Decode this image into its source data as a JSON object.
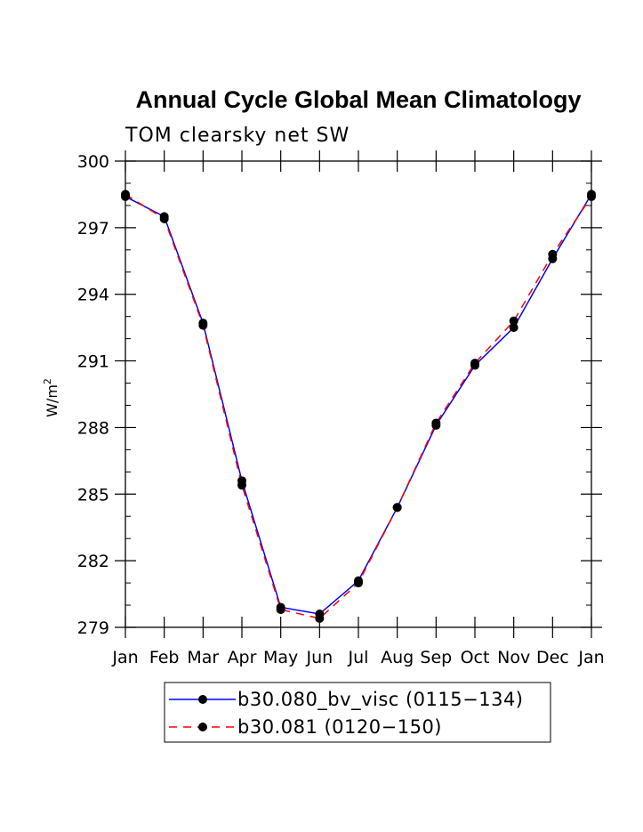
{
  "chart_data": {
    "type": "line",
    "title": "Annual Cycle Global Mean Climatology",
    "subtitle": "TOM clearsky net SW",
    "ylabel": "W/m",
    "ylabel_sup": "2",
    "xlabel": "",
    "categories": [
      "Jan",
      "Feb",
      "Mar",
      "Apr",
      "May",
      "Jun",
      "Jul",
      "Aug",
      "Sep",
      "Oct",
      "Nov",
      "Dec",
      "Jan"
    ],
    "ylim": [
      279,
      300
    ],
    "yticks": [
      "279",
      "282",
      "285",
      "288",
      "291",
      "294",
      "297",
      "300"
    ],
    "grid": false,
    "legend_position": "bottom-center",
    "series": [
      {
        "name": "b30.080_bv_visc (0115−134)",
        "color": "#0000ff",
        "dash": "solid",
        "values": [
          298.4,
          297.5,
          292.7,
          285.6,
          279.9,
          279.6,
          281.1,
          284.4,
          288.1,
          290.8,
          292.5,
          295.6,
          298.5
        ]
      },
      {
        "name": "b30.081 (0120−150)",
        "color": "#ff0000",
        "dash": "dashed",
        "values": [
          298.5,
          297.4,
          292.6,
          285.4,
          279.8,
          279.4,
          281.0,
          284.4,
          288.2,
          290.9,
          292.8,
          295.8,
          298.4
        ]
      }
    ]
  }
}
